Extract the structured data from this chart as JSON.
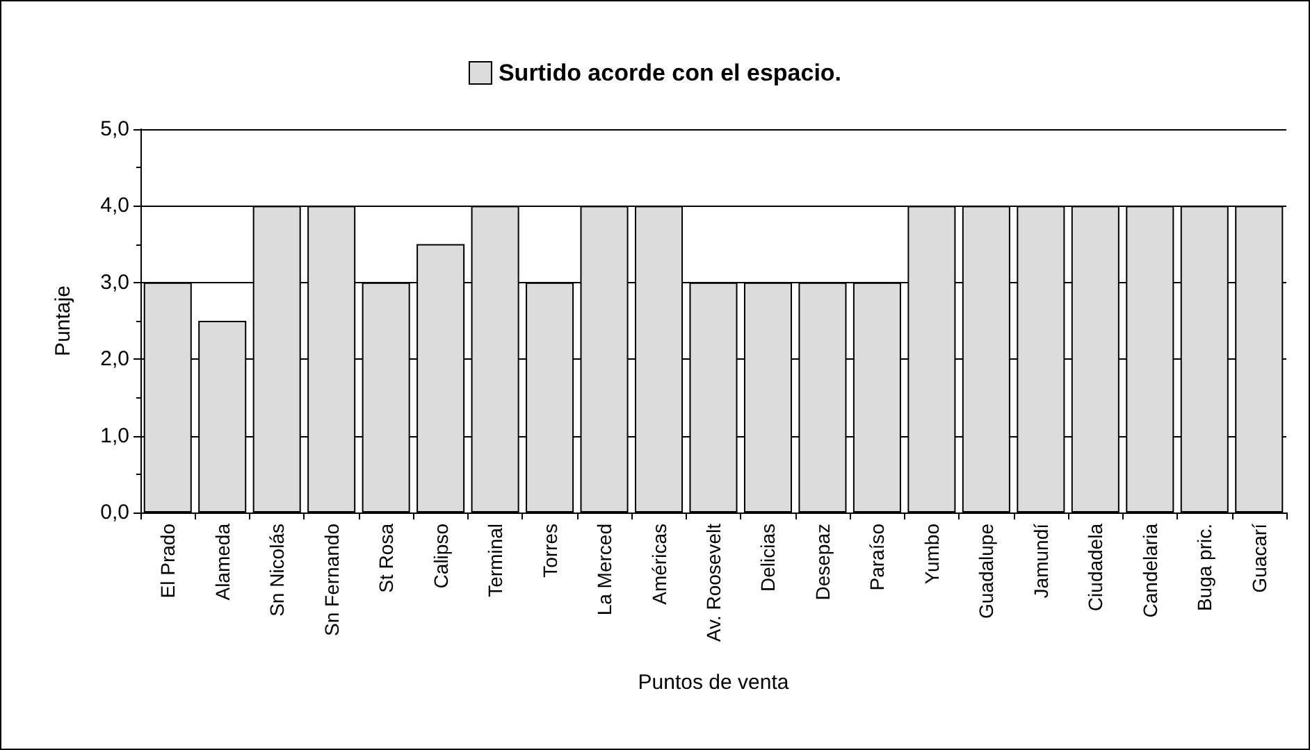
{
  "chart_data": {
    "type": "bar",
    "xlabel": "Puntos de venta",
    "ylabel": "Puntaje",
    "categories": [
      "El Prado",
      "Alameda",
      "Sn Nicolás",
      "Sn Fernando",
      "St Rosa",
      "Calipso",
      "Terminal",
      "Torres",
      "La Merced",
      "Américas",
      "Av. Roosevelt",
      "Delicias",
      "Desepaz",
      "Paraíso",
      "Yumbo",
      "Guadalupe",
      "Jamundí",
      "Ciudadela",
      "Candelaria",
      "Buga pric.",
      "Guacarí"
    ],
    "series": [
      {
        "name": "Surtido acorde con el espacio.",
        "color": "#dcdcdc",
        "values": [
          3,
          2.5,
          4,
          4,
          3,
          3.5,
          4,
          3,
          4,
          4,
          3,
          3,
          3,
          3,
          4,
          4,
          4,
          4,
          4,
          4,
          4
        ]
      }
    ],
    "ylim": [
      0,
      5
    ],
    "yticks": [
      {
        "value": 0,
        "label": "0,0"
      },
      {
        "value": 1,
        "label": "1,0"
      },
      {
        "value": 2,
        "label": "2,0"
      },
      {
        "value": 3,
        "label": "3,0"
      },
      {
        "value": 4,
        "label": "4,0"
      },
      {
        "value": 5,
        "label": "5,0"
      }
    ],
    "grid": "y",
    "legend": "top"
  }
}
